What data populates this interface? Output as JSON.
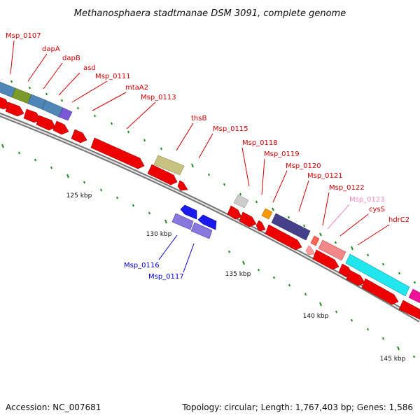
{
  "title": "Methanosphaera stadtmanae DSM 3091, complete genome",
  "footer": {
    "accession": "Accession: NC_007681",
    "summary": "Topology: circular; Length: 1,767,403 bp; Genes: 1,586"
  },
  "scale_labels": [
    "125 kbp",
    "130 kbp",
    "135 kbp",
    "140 kbp",
    "145 kbp"
  ],
  "colors": {
    "strand_forward": "#ee0000",
    "strand_reverse": "#0000ee",
    "label_forward": "#cc0000",
    "label_reverse": "#0000cc",
    "label_faded": "#f08cc0",
    "tick": "#228822",
    "backbone": "#888888",
    "feature_steel": "#4f86b8",
    "feature_olive": "#7a9a2a",
    "feature_violet": "#7b59d6",
    "feature_khaki": "#c8c282",
    "feature_grey": "#cccccc",
    "feature_orange": "#ff9900",
    "feature_indigo": "#44408a",
    "feature_salmon": "#ff6655",
    "feature_pink": "#f08888",
    "feature_cyan": "#22e6ee",
    "feature_magenta": "#ee1199",
    "feature_blue": "#1a1aee",
    "feature_lavender": "#8877dd"
  },
  "gene_labels_forward": [
    "Msp_0107",
    "dapA",
    "dapB",
    "asd",
    "Msp_0111",
    "mtaA2",
    "Msp_0113",
    "thsB",
    "Msp_0115",
    "Msp_0118",
    "Msp_0119",
    "Msp_0120",
    "Msp_0121",
    "Msp_0122",
    "cysS",
    "hdrC2"
  ],
  "gene_label_faded": "Msp_0123",
  "gene_labels_reverse": [
    "Msp_0116",
    "Msp_0117"
  ]
}
